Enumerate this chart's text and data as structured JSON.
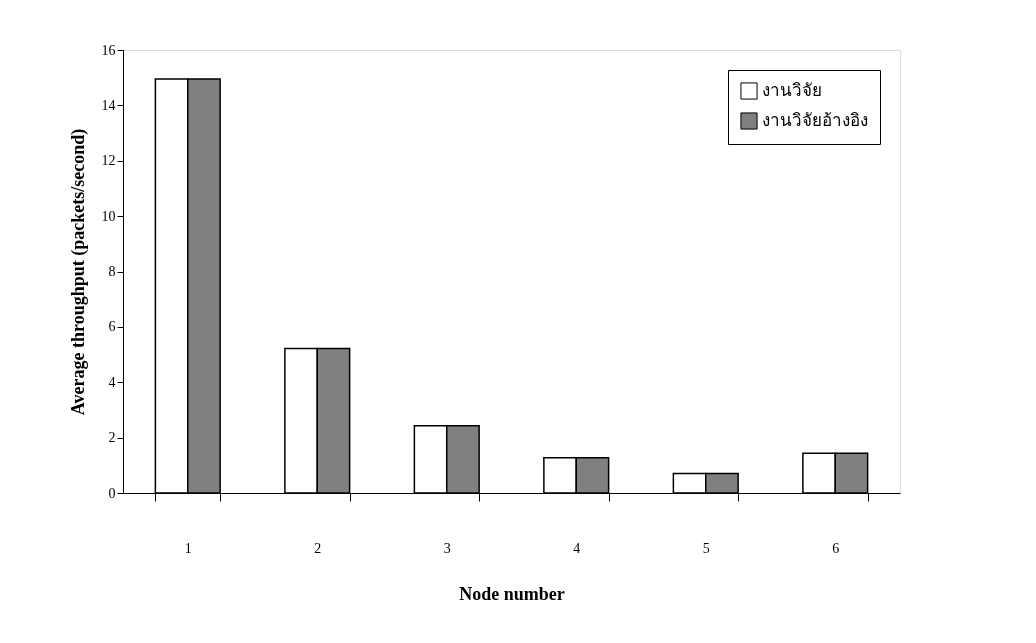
{
  "chart_data": {
    "type": "bar",
    "xlabel": "Node number",
    "ylabel": "Average throughput (packets/second)",
    "categories": [
      "1",
      "2",
      "3",
      "4",
      "5",
      "6"
    ],
    "series": [
      {
        "name": "งานวิจัย",
        "color": "#ffffff",
        "values": [
          14.95,
          5.22,
          2.43,
          1.27,
          0.7,
          1.44
        ]
      },
      {
        "name": "งานวิจัยอ้างอิง",
        "color": "#808080",
        "values": [
          14.95,
          5.22,
          2.43,
          1.27,
          0.7,
          1.44
        ]
      }
    ],
    "ylim": [
      0,
      16
    ],
    "yticks": [
      0,
      2,
      4,
      6,
      8,
      10,
      12,
      14,
      16
    ],
    "grid": false,
    "legend": "top right"
  }
}
